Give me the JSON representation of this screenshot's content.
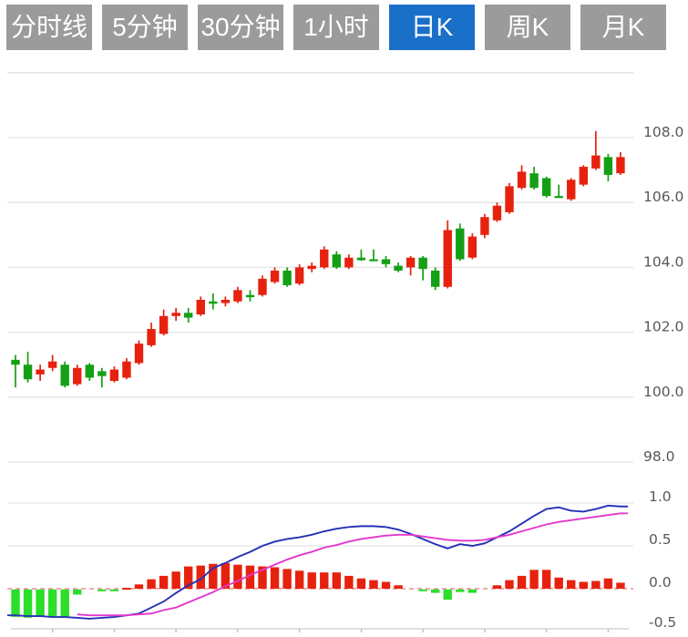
{
  "toolbar": {
    "tabs": [
      {
        "label": "分时线",
        "active": false
      },
      {
        "label": "5分钟",
        "active": false
      },
      {
        "label": "30分钟",
        "active": false
      },
      {
        "label": "1小时",
        "active": false
      },
      {
        "label": "日K",
        "active": true
      },
      {
        "label": "周K",
        "active": false
      },
      {
        "label": "月K",
        "active": false
      }
    ],
    "active_bg": "#1a6fc9",
    "inactive_bg": "#9b9b9b",
    "text_color": "#ffffff"
  },
  "chart_data": {
    "type": "candlestick",
    "title": "",
    "panels": {
      "price": {
        "yticks": [
          108.0,
          106.0,
          104.0,
          102.0,
          100.0,
          98.0
        ],
        "ytick_labels": [
          "108.0",
          "106.0",
          "104.0",
          "102.0",
          "100.0",
          "98.0"
        ],
        "ylim": [
          98.0,
          110.0
        ],
        "grid": true,
        "up_means": "red (CN convention: red=rise, green=fall)"
      },
      "macd": {
        "yticks": [
          1.0,
          0.5,
          0.0,
          -0.5
        ],
        "ytick_labels": [
          "1.0",
          "0.5",
          "0.0",
          "-0.5"
        ],
        "ylim": [
          -0.5,
          1.05
        ],
        "zero_line": "dashed",
        "xticks_every": 5
      }
    },
    "candles": [
      {
        "o": 101.15,
        "c": 101.0,
        "h": 101.3,
        "l": 100.3,
        "color": "g"
      },
      {
        "o": 101.0,
        "c": 100.55,
        "h": 101.4,
        "l": 100.45,
        "color": "g"
      },
      {
        "o": 100.7,
        "c": 100.85,
        "h": 101.0,
        "l": 100.5,
        "color": "r"
      },
      {
        "o": 100.9,
        "c": 101.1,
        "h": 101.3,
        "l": 100.8,
        "color": "r"
      },
      {
        "o": 101.0,
        "c": 100.35,
        "h": 101.1,
        "l": 100.3,
        "color": "g"
      },
      {
        "o": 100.4,
        "c": 100.9,
        "h": 101.0,
        "l": 100.35,
        "color": "r"
      },
      {
        "o": 101.0,
        "c": 100.6,
        "h": 101.05,
        "l": 100.5,
        "color": "g"
      },
      {
        "o": 100.8,
        "c": 100.65,
        "h": 100.9,
        "l": 100.3,
        "color": "g"
      },
      {
        "o": 100.5,
        "c": 100.85,
        "h": 100.95,
        "l": 100.45,
        "color": "r"
      },
      {
        "o": 100.6,
        "c": 101.1,
        "h": 101.2,
        "l": 100.55,
        "color": "r"
      },
      {
        "o": 101.05,
        "c": 101.65,
        "h": 101.75,
        "l": 101.0,
        "color": "r"
      },
      {
        "o": 101.6,
        "c": 102.1,
        "h": 102.3,
        "l": 101.55,
        "color": "r"
      },
      {
        "o": 101.95,
        "c": 102.5,
        "h": 102.7,
        "l": 101.9,
        "color": "r"
      },
      {
        "o": 102.5,
        "c": 102.6,
        "h": 102.75,
        "l": 102.35,
        "color": "r"
      },
      {
        "o": 102.6,
        "c": 102.45,
        "h": 102.75,
        "l": 102.3,
        "color": "g"
      },
      {
        "o": 102.55,
        "c": 103.0,
        "h": 103.1,
        "l": 102.5,
        "color": "r"
      },
      {
        "o": 102.95,
        "c": 102.88,
        "h": 103.2,
        "l": 102.7,
        "color": "g"
      },
      {
        "o": 102.9,
        "c": 103.0,
        "h": 103.1,
        "l": 102.8,
        "color": "r"
      },
      {
        "o": 102.95,
        "c": 103.3,
        "h": 103.4,
        "l": 102.9,
        "color": "r"
      },
      {
        "o": 103.15,
        "c": 103.08,
        "h": 103.3,
        "l": 102.95,
        "color": "g"
      },
      {
        "o": 103.15,
        "c": 103.65,
        "h": 103.75,
        "l": 103.1,
        "color": "r"
      },
      {
        "o": 103.55,
        "c": 103.9,
        "h": 104.0,
        "l": 103.5,
        "color": "r"
      },
      {
        "o": 103.9,
        "c": 103.45,
        "h": 104.0,
        "l": 103.4,
        "color": "g"
      },
      {
        "o": 103.5,
        "c": 104.0,
        "h": 104.1,
        "l": 103.45,
        "color": "r"
      },
      {
        "o": 103.95,
        "c": 104.05,
        "h": 104.15,
        "l": 103.85,
        "color": "r"
      },
      {
        "o": 104.0,
        "c": 104.55,
        "h": 104.65,
        "l": 103.95,
        "color": "r"
      },
      {
        "o": 104.4,
        "c": 104.0,
        "h": 104.5,
        "l": 103.95,
        "color": "g"
      },
      {
        "o": 104.0,
        "c": 104.3,
        "h": 104.4,
        "l": 103.95,
        "color": "r"
      },
      {
        "o": 104.3,
        "c": 104.22,
        "h": 104.55,
        "l": 104.2,
        "color": "g"
      },
      {
        "o": 104.25,
        "c": 104.25,
        "h": 104.55,
        "l": 104.22,
        "color": "g"
      },
      {
        "o": 104.25,
        "c": 104.1,
        "h": 104.35,
        "l": 104.0,
        "color": "g"
      },
      {
        "o": 104.05,
        "c": 103.9,
        "h": 104.15,
        "l": 103.85,
        "color": "g"
      },
      {
        "o": 104.0,
        "c": 104.3,
        "h": 104.35,
        "l": 103.75,
        "color": "r"
      },
      {
        "o": 104.3,
        "c": 103.95,
        "h": 104.35,
        "l": 103.6,
        "color": "g"
      },
      {
        "o": 103.9,
        "c": 103.4,
        "h": 104.0,
        "l": 103.3,
        "color": "g"
      },
      {
        "o": 103.4,
        "c": 105.15,
        "h": 105.45,
        "l": 103.35,
        "color": "r"
      },
      {
        "o": 105.2,
        "c": 104.25,
        "h": 105.35,
        "l": 104.2,
        "color": "g"
      },
      {
        "o": 104.3,
        "c": 104.95,
        "h": 105.05,
        "l": 104.25,
        "color": "r"
      },
      {
        "o": 105.0,
        "c": 105.55,
        "h": 105.65,
        "l": 104.9,
        "color": "r"
      },
      {
        "o": 105.45,
        "c": 105.9,
        "h": 106.0,
        "l": 105.4,
        "color": "r"
      },
      {
        "o": 105.7,
        "c": 106.5,
        "h": 106.6,
        "l": 105.65,
        "color": "r"
      },
      {
        "o": 106.45,
        "c": 106.95,
        "h": 107.15,
        "l": 106.4,
        "color": "r"
      },
      {
        "o": 106.9,
        "c": 106.45,
        "h": 107.1,
        "l": 106.4,
        "color": "g"
      },
      {
        "o": 106.75,
        "c": 106.2,
        "h": 106.8,
        "l": 106.15,
        "color": "g"
      },
      {
        "o": 106.2,
        "c": 106.2,
        "h": 106.55,
        "l": 106.15,
        "color": "g"
      },
      {
        "o": 106.1,
        "c": 106.7,
        "h": 106.75,
        "l": 106.05,
        "color": "r"
      },
      {
        "o": 106.55,
        "c": 107.1,
        "h": 107.15,
        "l": 106.5,
        "color": "r"
      },
      {
        "o": 107.05,
        "c": 107.45,
        "h": 108.2,
        "l": 107.0,
        "color": "r"
      },
      {
        "o": 107.4,
        "c": 106.85,
        "h": 107.5,
        "l": 106.65,
        "color": "g"
      },
      {
        "o": 106.9,
        "c": 107.4,
        "h": 107.55,
        "l": 106.85,
        "color": "r"
      }
    ],
    "macd": {
      "hist": [
        -0.32,
        -0.33,
        -0.32,
        -0.32,
        -0.33,
        -0.06,
        0,
        -0.02,
        -0.02,
        0.01,
        0.05,
        0.11,
        0.15,
        0.2,
        0.26,
        0.27,
        0.29,
        0.3,
        0.28,
        0.27,
        0.26,
        0.25,
        0.23,
        0.21,
        0.19,
        0.19,
        0.19,
        0.15,
        0.12,
        0.1,
        0.08,
        0.04,
        0,
        -0.02,
        -0.04,
        -0.12,
        -0.03,
        -0.04,
        0,
        0.04,
        0.1,
        0.15,
        0.22,
        0.22,
        0.13,
        0.1,
        0.08,
        0.09,
        0.12,
        0.07
      ],
      "dif": [
        -0.31,
        -0.32,
        -0.32,
        -0.33,
        -0.33,
        -0.34,
        -0.35,
        -0.34,
        -0.33,
        -0.31,
        -0.29,
        -0.22,
        -0.15,
        -0.05,
        0.04,
        0.11,
        0.24,
        0.3,
        0.37,
        0.43,
        0.5,
        0.55,
        0.58,
        0.6,
        0.63,
        0.67,
        0.7,
        0.72,
        0.73,
        0.73,
        0.72,
        0.69,
        0.64,
        0.58,
        0.52,
        0.47,
        0.52,
        0.5,
        0.53,
        0.6,
        0.67,
        0.76,
        0.85,
        0.93,
        0.95,
        0.91,
        0.9,
        0.93,
        0.97,
        0.96
      ],
      "dea": [
        null,
        null,
        null,
        null,
        null,
        -0.3,
        -0.31,
        -0.31,
        -0.31,
        -0.31,
        -0.3,
        -0.29,
        -0.25,
        -0.22,
        -0.16,
        -0.1,
        -0.04,
        0.03,
        0.09,
        0.16,
        0.22,
        0.28,
        0.34,
        0.39,
        0.43,
        0.48,
        0.51,
        0.55,
        0.58,
        0.6,
        0.62,
        0.63,
        0.63,
        0.61,
        0.59,
        0.57,
        0.56,
        0.56,
        0.57,
        0.6,
        0.63,
        0.67,
        0.71,
        0.75,
        0.78,
        0.8,
        0.82,
        0.84,
        0.86,
        0.88
      ]
    },
    "colors": {
      "up": "#e6220f",
      "down": "#14a014",
      "hist_up": "#e6220f",
      "hist_down": "#2ade2a",
      "dif_line": "#2531b5",
      "dea_line": "#e437cc",
      "grid": "#e3e3e3",
      "axis_line": "#cccccc",
      "axis_text": "#58585a",
      "zero_line": "#ee7777"
    }
  }
}
